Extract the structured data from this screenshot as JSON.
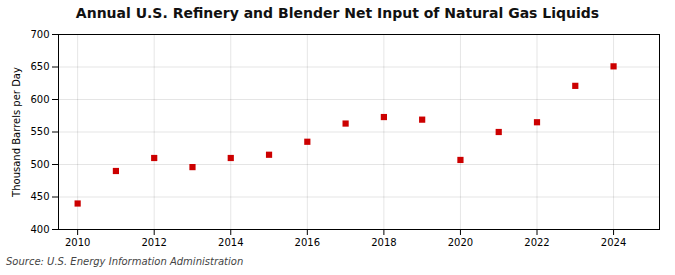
{
  "chart_data": {
    "type": "scatter",
    "title": "Annual U.S. Refinery and Blender Net Input of Natural Gas Liquids",
    "ylabel": "Thousand Barrels per Day",
    "annotations": [
      "Source: U.S. Energy Information Administration"
    ],
    "x": [
      2010,
      2011,
      2012,
      2013,
      2014,
      2015,
      2016,
      2017,
      2018,
      2019,
      2020,
      2021,
      2022,
      2023,
      2024
    ],
    "values": [
      440,
      490,
      510,
      496,
      510,
      515,
      535,
      563,
      573,
      569,
      507,
      550,
      565,
      621,
      651
    ],
    "color": "#cc0000",
    "marker": "square",
    "xlim": [
      2009.5,
      2025.2
    ],
    "xticks": [
      2010,
      2012,
      2014,
      2016,
      2018,
      2020,
      2022,
      2024
    ],
    "ylim": [
      400,
      700
    ],
    "yticks": [
      400,
      450,
      500,
      550,
      600,
      650,
      700
    ],
    "grid": true
  }
}
